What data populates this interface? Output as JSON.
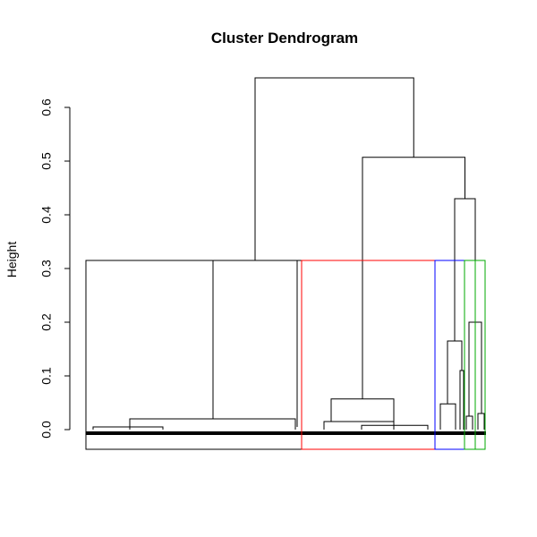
{
  "chart_data": {
    "type": "dendrogram",
    "title": "Cluster Dendrogram",
    "ylabel": "Height",
    "xlabel": "",
    "ylim": [
      0,
      0.65
    ],
    "yticks": [
      "0.0",
      "0.1",
      "0.2",
      "0.3",
      "0.4",
      "0.5",
      "0.6"
    ],
    "cut_height": 0.315,
    "merges": [
      {
        "id": "root",
        "height": 0.655,
        "children": [
          "left_group",
          "right_big"
        ]
      },
      {
        "id": "right_big",
        "height": 0.507,
        "children": [
          "mid_group",
          "right_sub"
        ]
      },
      {
        "id": "right_sub",
        "height": 0.43,
        "children": [
          "blue_group",
          "green_group"
        ]
      },
      {
        "id": "left_group",
        "height": 0.315,
        "children": [
          "black_cluster_a",
          "black_cluster_b"
        ]
      },
      {
        "id": "mid_group",
        "height": 0.057,
        "children": [
          "red_cluster_a",
          "red_cluster_b"
        ]
      },
      {
        "id": "blue_group",
        "height": 0.165,
        "children": [
          "blue_cluster_a",
          "blue_cluster_b"
        ]
      },
      {
        "id": "green_group",
        "height": 0.2,
        "children": [
          "green_cluster_a",
          "green_cluster_b"
        ]
      },
      {
        "id": "black_cluster_a",
        "height": 0.02
      },
      {
        "id": "black_cluster_b",
        "height": 0.005
      },
      {
        "id": "red_cluster_a",
        "height": 0.015
      },
      {
        "id": "red_cluster_b",
        "height": 0.008
      },
      {
        "id": "blue_cluster_a",
        "height": 0.048
      },
      {
        "id": "blue_cluster_b",
        "height": 0.11
      },
      {
        "id": "green_cluster_a",
        "height": 0.025
      },
      {
        "id": "green_cluster_b",
        "height": 0.03
      }
    ],
    "cut_clusters": [
      {
        "color": "#000000"
      },
      {
        "color": "#ff0000"
      },
      {
        "color": "#0000ff"
      },
      {
        "color": "#00aa00"
      },
      {
        "color": "#00aa00"
      }
    ],
    "grid": false
  }
}
